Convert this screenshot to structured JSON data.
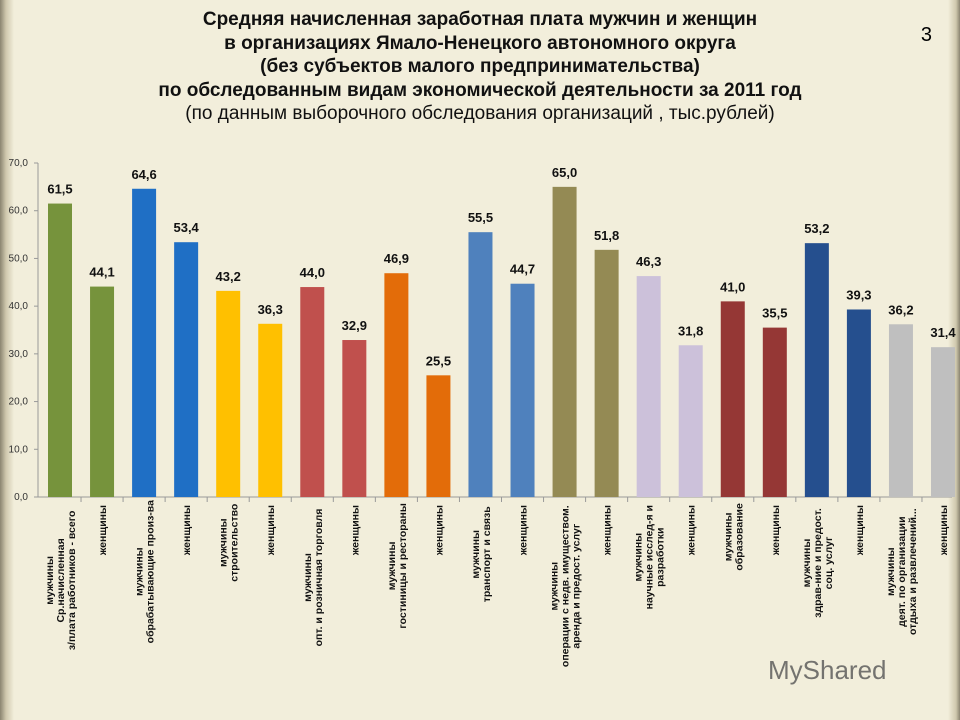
{
  "page_number": "3",
  "watermark": "MyShared",
  "chart_data": {
    "type": "bar",
    "title": [
      "Средняя начисленная заработная плата мужчин и женщин",
      "в организациях Ямало-Ненецкого автономного округа",
      "(без субъектов малого предпринимательства)",
      "по обследованным видам экономической деятельности за 2011 год"
    ],
    "subtitle": "(по данным выборочного обследования организаций  , тыс.рублей)",
    "ylim": [
      0,
      70
    ],
    "yticks": [
      "0,0",
      "10,0",
      "20,0",
      "30,0",
      "40,0",
      "50,0",
      "60,0",
      "70,0"
    ],
    "grid": false,
    "categories": [
      [
        "мужчины",
        "Ср.начисленная",
        "з/плата работников - всего"
      ],
      [
        "женщины"
      ],
      [
        "мужчины",
        "обрабатывающие произ-ва"
      ],
      [
        "женщины"
      ],
      [
        "мужчины",
        "строительство"
      ],
      [
        "женщины"
      ],
      [
        "мужчины",
        "опт. и розничная торговля"
      ],
      [
        "женщины"
      ],
      [
        "мужчины",
        "гостиницы и рестораны"
      ],
      [
        "женщины"
      ],
      [
        "мужчины",
        "транспорт и связь"
      ],
      [
        "женщины"
      ],
      [
        "мужчины",
        "операции с недв. имуществом.",
        "аренда и предост. услуг"
      ],
      [
        "женщины"
      ],
      [
        "мужчины",
        "научные исслед-я и",
        "разработки"
      ],
      [
        "женщины"
      ],
      [
        "мужчины",
        "образование"
      ],
      [
        "женщины"
      ],
      [
        "мужчины",
        "здрав-ние и предост.",
        "соц. услуг"
      ],
      [
        "женщины"
      ],
      [
        "мужчины",
        "деят. по организации",
        "отдыха и развлечений..."
      ],
      [
        "женщины"
      ]
    ],
    "values": [
      61.5,
      44.1,
      64.6,
      53.4,
      43.2,
      36.3,
      44.0,
      32.9,
      46.9,
      25.5,
      55.5,
      44.7,
      65.0,
      51.8,
      46.3,
      31.8,
      41.0,
      35.5,
      53.2,
      39.3,
      36.2,
      31.4
    ],
    "data_labels": [
      "61,5",
      "44,1",
      "64,6",
      "53,4",
      "43,2",
      "36,3",
      "44,0",
      "32,9",
      "46,9",
      "25,5",
      "55,5",
      "44,7",
      "65,0",
      "51,8",
      "46,3",
      "31,8",
      "41,0",
      "35,5",
      "53,2",
      "39,3",
      "36,2",
      "31,4"
    ],
    "colors": [
      "#76933c",
      "#1f6fc5",
      "#ffc000",
      "#c0504d",
      "#e36c09",
      "#4f81bd",
      "#948a54",
      "#ccc1da",
      "#953735",
      "#254f8e",
      "#bfbfbf"
    ]
  }
}
